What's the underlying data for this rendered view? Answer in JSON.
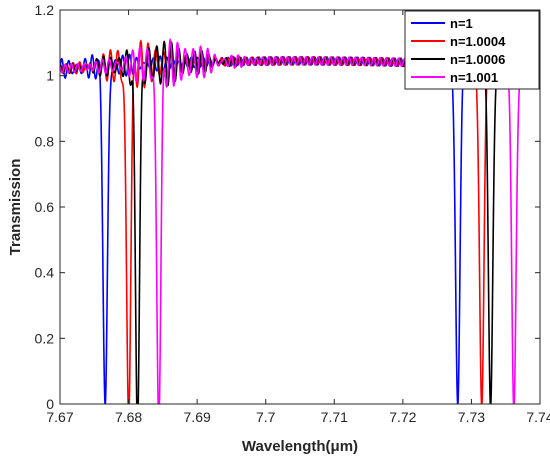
{
  "chart_data": {
    "type": "line",
    "xlabel": "Wavelength(μm)",
    "ylabel": "Transmission",
    "xlim": [
      7.67,
      7.74
    ],
    "ylim": [
      0,
      1.2
    ],
    "xticks": [
      "7.67",
      "7.68",
      "7.69",
      "7.7",
      "7.71",
      "7.72",
      "7.73",
      "7.74"
    ],
    "yticks": [
      "0",
      "0.2",
      "0.4",
      "0.6",
      "0.8",
      "1",
      "1.2"
    ],
    "grid": false,
    "legend_position": "top-right",
    "series": [
      {
        "name": "n=1",
        "color": "#0000ff",
        "dips": [
          {
            "center": 7.6766,
            "width": 0.00045,
            "min": 0.0
          },
          {
            "center": 7.728,
            "width": 0.00045,
            "min": 0.0
          }
        ],
        "ripple_amp": 0.025,
        "ripple_center": 7.6755,
        "ripple_span": 0.01
      },
      {
        "name": "n=1.0004",
        "color": "#ff0000",
        "dips": [
          {
            "center": 7.68,
            "width": 0.00045,
            "min": 0.0
          },
          {
            "center": 7.7315,
            "width": 0.00045,
            "min": 0.0
          }
        ],
        "ripple_amp": 0.06,
        "ripple_center": 7.6815,
        "ripple_span": 0.006
      },
      {
        "name": "n=1.0006",
        "color": "#000000",
        "dips": [
          {
            "center": 7.6813,
            "width": 0.00045,
            "min": 0.0
          },
          {
            "center": 7.7328,
            "width": 0.00045,
            "min": 0.0
          }
        ],
        "ripple_amp": 0.06,
        "ripple_center": 7.6838,
        "ripple_span": 0.007
      },
      {
        "name": "n=1.001",
        "color": "#ff00ff",
        "dips": [
          {
            "center": 7.6844,
            "width": 0.00045,
            "min": 0.0
          },
          {
            "center": 7.7362,
            "width": 0.00045,
            "min": 0.0
          }
        ],
        "ripple_amp": 0.06,
        "ripple_center": 7.6858,
        "ripple_span": 0.007
      }
    ]
  }
}
